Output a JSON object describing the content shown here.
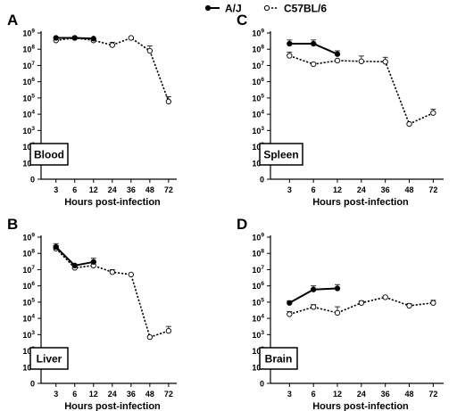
{
  "legend": {
    "series": [
      {
        "name": "A/J",
        "style": "solid",
        "marker": "filled-circle",
        "color": "#000000"
      },
      {
        "name": "C57BL/6",
        "style": "dotted",
        "marker": "open-circle",
        "color": "#000000"
      }
    ]
  },
  "chart_data": [
    {
      "panel": "A",
      "label": "Blood",
      "type": "line",
      "yscale": "log",
      "xlabel": "Hours post-infection",
      "categories": [
        "3",
        "6",
        "12",
        "24",
        "36",
        "48",
        "72"
      ],
      "ylim": [
        1,
        1000000000
      ],
      "yticks": [
        {
          "b": "10",
          "e": "9"
        },
        {
          "b": "10",
          "e": "8"
        },
        {
          "b": "10",
          "e": "7"
        },
        {
          "b": "10",
          "e": "6"
        },
        {
          "b": "10",
          "e": "5"
        },
        {
          "b": "10",
          "e": "4"
        },
        {
          "b": "10",
          "e": "3"
        },
        {
          "b": "10",
          "e": "2"
        },
        {
          "b": "10",
          "e": "1"
        },
        {
          "b": "0",
          "e": ""
        }
      ],
      "series": [
        {
          "name": "A/J",
          "values": [
            500000000,
            500000000,
            450000000,
            null,
            null,
            null,
            null
          ],
          "errors": [
            0,
            0,
            0,
            null,
            null,
            null,
            null
          ]
        },
        {
          "name": "C57BL/6",
          "values": [
            350000000,
            500000000,
            350000000,
            180000000,
            500000000,
            80000000,
            60000
          ],
          "errors": [
            0,
            0,
            0,
            90000000,
            0,
            80000000,
            60000
          ]
        }
      ]
    },
    {
      "panel": "B",
      "label": "Liver",
      "type": "line",
      "yscale": "log",
      "xlabel": "Hours post-infection",
      "categories": [
        "3",
        "6",
        "12",
        "24",
        "36",
        "48",
        "72"
      ],
      "ylim": [
        1,
        1000000000
      ],
      "yticks": [
        {
          "b": "10",
          "e": "9"
        },
        {
          "b": "10",
          "e": "8"
        },
        {
          "b": "10",
          "e": "7"
        },
        {
          "b": "10",
          "e": "6"
        },
        {
          "b": "10",
          "e": "5"
        },
        {
          "b": "10",
          "e": "4"
        },
        {
          "b": "10",
          "e": "3"
        },
        {
          "b": "10",
          "e": "2"
        },
        {
          "b": "10",
          "e": "1"
        },
        {
          "b": "0",
          "e": ""
        }
      ],
      "series": [
        {
          "name": "A/J",
          "values": [
            250000000,
            18000000,
            30000000,
            null,
            null,
            null,
            null
          ],
          "errors": [
            150000000,
            0,
            20000000,
            null,
            null,
            null,
            null
          ]
        },
        {
          "name": "C57BL/6",
          "values": [
            200000000,
            13000000,
            18000000,
            7000000,
            5000000,
            700,
            1700
          ],
          "errors": [
            100000000,
            0,
            8000000,
            3000000,
            0,
            0,
            1500
          ]
        }
      ]
    },
    {
      "panel": "C",
      "label": "Spleen",
      "type": "line",
      "yscale": "log",
      "xlabel": "Hours post-infection",
      "categories": [
        "3",
        "6",
        "12",
        "24",
        "36",
        "48",
        "72"
      ],
      "ylim": [
        1,
        1000000000
      ],
      "yticks": [
        {
          "b": "10",
          "e": "9"
        },
        {
          "b": "10",
          "e": "8"
        },
        {
          "b": "10",
          "e": "7"
        },
        {
          "b": "10",
          "e": "6"
        },
        {
          "b": "10",
          "e": "5"
        },
        {
          "b": "10",
          "e": "4"
        },
        {
          "b": "10",
          "e": "3"
        },
        {
          "b": "10",
          "e": "2"
        },
        {
          "b": "10",
          "e": "1"
        },
        {
          "b": "0",
          "e": ""
        }
      ],
      "series": [
        {
          "name": "A/J",
          "values": [
            220000000,
            220000000,
            50000000,
            null,
            null,
            null,
            null
          ],
          "errors": [
            150000000,
            150000000,
            30000000,
            null,
            null,
            null,
            null
          ]
        },
        {
          "name": "C57BL/6",
          "values": [
            40000000,
            12000000,
            20000000,
            18000000,
            17000000,
            2500,
            12000
          ],
          "errors": [
            25000000,
            0,
            0,
            20000000,
            15000000,
            0,
            8000
          ]
        }
      ]
    },
    {
      "panel": "D",
      "label": "Brain",
      "type": "line",
      "yscale": "log",
      "xlabel": "Hours post-infection",
      "categories": [
        "3",
        "6",
        "12",
        "24",
        "36",
        "48",
        "72"
      ],
      "ylim": [
        1,
        1000000000
      ],
      "yticks": [
        {
          "b": "10",
          "e": "9"
        },
        {
          "b": "10",
          "e": "8"
        },
        {
          "b": "10",
          "e": "7"
        },
        {
          "b": "10",
          "e": "6"
        },
        {
          "b": "10",
          "e": "5"
        },
        {
          "b": "10",
          "e": "4"
        },
        {
          "b": "10",
          "e": "3"
        },
        {
          "b": "10",
          "e": "2"
        },
        {
          "b": "10",
          "e": "1"
        },
        {
          "b": "0",
          "e": ""
        }
      ],
      "series": [
        {
          "name": "A/J",
          "values": [
            90000,
            600000,
            700000,
            null,
            null,
            null,
            null
          ],
          "errors": [
            30000,
            400000,
            500000,
            null,
            null,
            null,
            null
          ]
        },
        {
          "name": "C57BL/6",
          "values": [
            18000,
            50000,
            22000,
            90000,
            200000,
            60000,
            90000
          ],
          "errors": [
            8000,
            20000,
            30000,
            30000,
            30000,
            20000,
            40000
          ]
        }
      ]
    }
  ]
}
